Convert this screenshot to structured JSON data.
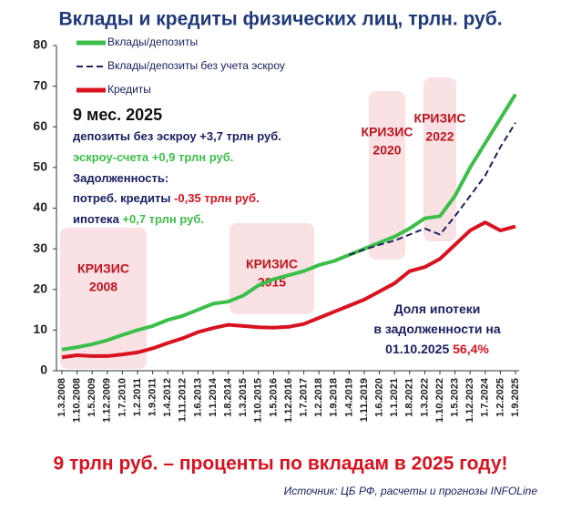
{
  "chart_data": {
    "type": "line",
    "title": "Вклады и кредиты физических лиц, трлн. руб.",
    "categories": [
      "1.3.2008",
      "1.10.2008",
      "1.5.2009",
      "1.12.2009",
      "1.7.2010",
      "1.2.2011",
      "1.9.2011",
      "1.4.2012",
      "1.11.2012",
      "1.6.2013",
      "1.1.2014",
      "1.8.2014",
      "1.3.2015",
      "1.10.2015",
      "1.5.2016",
      "1.12.2016",
      "1.7.2017",
      "1.2.2018",
      "1.9.2018",
      "1.4.2019",
      "1.11.2019",
      "1.6.2020",
      "1.1.2021",
      "1.8.2021",
      "1.3.2022",
      "1.10.2022",
      "1.5.2023",
      "1.12.2023",
      "1.7.2024",
      "1.2.2025",
      "1.9.2025"
    ],
    "series": [
      {
        "name": "Вклады/депозиты",
        "color": "#3cbf4a",
        "dash": false,
        "values": [
          5.2,
          5.8,
          6.5,
          7.5,
          8.8,
          10,
          11,
          12.5,
          13.5,
          15,
          16.5,
          17,
          18.5,
          21,
          22.5,
          23.5,
          24.5,
          26,
          27,
          28.5,
          30,
          31.5,
          33,
          35,
          37.5,
          38,
          43,
          50,
          56,
          62,
          68
        ]
      },
      {
        "name": "Вклады/депозиты без учета эскроу",
        "color": "#1a2060",
        "dash": true,
        "values": [
          null,
          null,
          null,
          null,
          null,
          null,
          null,
          null,
          null,
          null,
          null,
          null,
          null,
          null,
          null,
          null,
          null,
          null,
          null,
          28.5,
          29.8,
          31,
          32,
          33.5,
          35,
          33.5,
          38,
          43,
          48,
          55,
          61
        ]
      },
      {
        "name": "Кредиты",
        "color": "#d9121f",
        "dash": false,
        "values": [
          3.3,
          3.8,
          3.6,
          3.6,
          4,
          4.5,
          5.5,
          6.8,
          8,
          9.5,
          10.5,
          11.3,
          11,
          10.7,
          10.6,
          10.8,
          11.5,
          13,
          14.5,
          16,
          17.5,
          19.5,
          21.5,
          24.5,
          25.5,
          27.5,
          31,
          34.5,
          36.5,
          34.5,
          35.5
        ]
      }
    ],
    "ylim": [
      0,
      80
    ],
    "yticks": [
      0,
      10,
      20,
      30,
      40,
      50,
      60,
      70,
      80
    ],
    "crises": [
      [
        "КРИЗИС",
        "2008"
      ],
      [
        "КРИЗИС",
        "2015"
      ],
      [
        "КРИЗИС",
        "2020"
      ],
      [
        "КРИЗИС",
        "2022"
      ]
    ],
    "annotations": [
      [
        {
          "text": "9 мес. 2025",
          "color": "#111111"
        }
      ],
      [
        {
          "text": "депозиты без эскроу +3,7 трлн руб.",
          "color": "#1a2060"
        }
      ],
      [
        {
          "text": "эскроу-счета +0,9 трлн руб.",
          "color": "#3cbf4a"
        }
      ],
      [
        {
          "text": "Задолженность:",
          "color": "#1a2060"
        }
      ],
      [
        {
          "text": "потреб. кредиты ",
          "color": "#1a2060"
        },
        {
          "text": "-0,35 трлн руб.",
          "color": "#d9121f"
        }
      ],
      [
        {
          "text": "ипотека ",
          "color": "#1a2060"
        },
        {
          "text": "+0,7 трлн руб.",
          "color": "#3cbf4a"
        }
      ],
      [
        {
          "text": "Доля ипотеки",
          "color": "#1a2060"
        }
      ],
      [
        {
          "text": "в задолженности на",
          "color": "#1a2060"
        }
      ],
      [
        {
          "text": "01.10.2025 ",
          "color": "#1a2060"
        },
        {
          "text": "56,4%",
          "color": "#d9121f"
        }
      ]
    ],
    "footer": "9 трлн руб. – проценты по вкладам в 2025 году!",
    "source": "Источник: ЦБ РФ, расчеты и прогнозы INFOLine"
  }
}
